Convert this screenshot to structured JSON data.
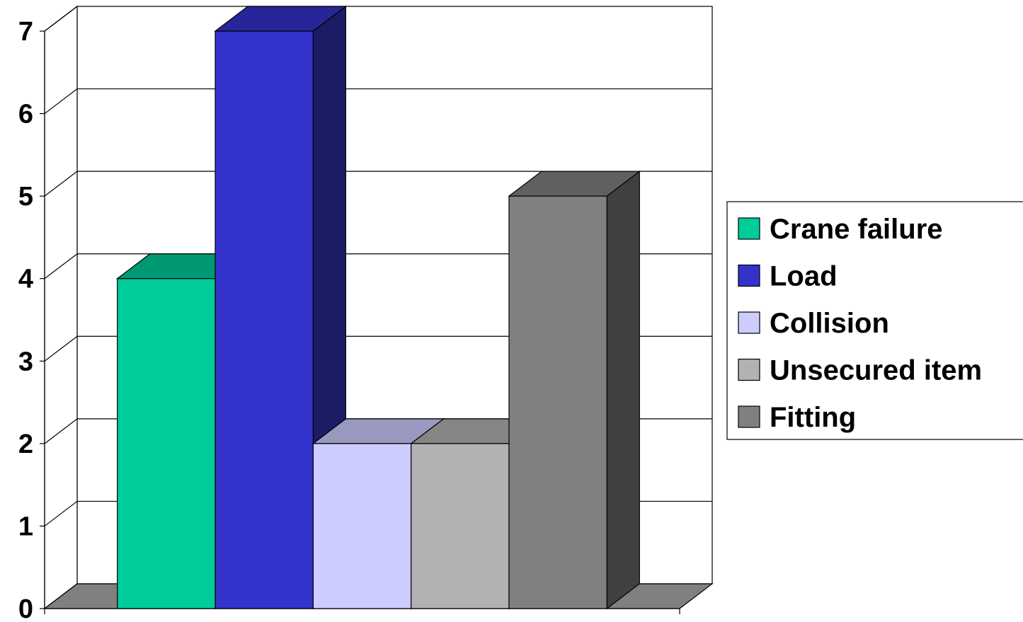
{
  "chart_data": {
    "type": "bar",
    "subtype": "3d-clustered-column",
    "categories": [
      ""
    ],
    "series": [
      {
        "name": "Crane failure",
        "values": [
          4
        ],
        "color": "#00cc99",
        "top_color": "#009973",
        "side_color": "#007a5c"
      },
      {
        "name": "Load",
        "values": [
          7
        ],
        "color": "#3333cc",
        "top_color": "#262699",
        "side_color": "#1c1c66"
      },
      {
        "name": "Collision",
        "values": [
          2
        ],
        "color": "#ccccff",
        "top_color": "#9999c0",
        "side_color": "#7a7aa0"
      },
      {
        "name": "Unsecured item",
        "values": [
          2
        ],
        "color": "#b2b2b2",
        "top_color": "#858585",
        "side_color": "#6b6b6b"
      },
      {
        "name": "Fitting",
        "values": [
          5
        ],
        "color": "#808080",
        "top_color": "#606060",
        "side_color": "#404040"
      }
    ],
    "ylim": [
      0,
      7
    ],
    "y_ticks": [
      "0",
      "1",
      "2",
      "3",
      "4",
      "5",
      "6",
      "7"
    ],
    "grid": true,
    "legend_position": "right",
    "floor_color": "#808080"
  }
}
